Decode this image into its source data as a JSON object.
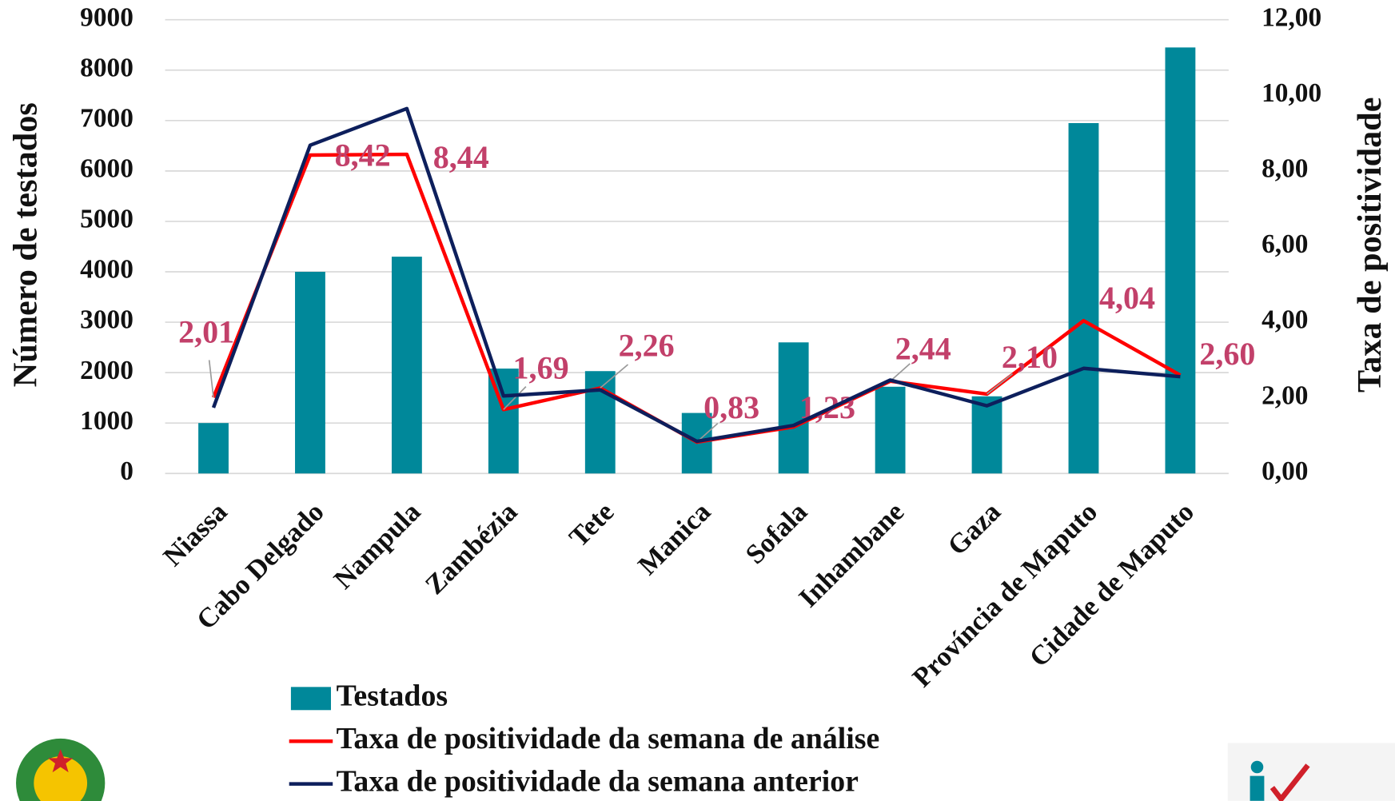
{
  "chart_data": {
    "type": "bar",
    "y_label": "Número de testados",
    "y2_label": "Taxa de positividade",
    "categories": [
      "Niassa",
      "Cabo Delgado",
      "Nampula",
      "Zambézia",
      "Tete",
      "Manica",
      "Sofala",
      "Inhambane",
      "Gaza",
      "Província de Maputo",
      "Cidade de Maputo"
    ],
    "series": [
      {
        "name": "Testados",
        "type": "bar",
        "axis": "y",
        "color": "#00889a",
        "values": [
          1000,
          4000,
          4300,
          2080,
          2030,
          1200,
          2600,
          1720,
          1530,
          6950,
          8450
        ]
      },
      {
        "name": "Taxa de positividade da semana de análise",
        "type": "line",
        "axis": "y2",
        "color": "#ff0000",
        "values": [
          2.01,
          8.42,
          8.44,
          1.69,
          2.26,
          0.83,
          1.23,
          2.44,
          2.1,
          4.04,
          2.6
        ],
        "value_labels": [
          "2,01",
          "8,42",
          "8,44",
          "1,69",
          "2,26",
          "0,83",
          "1,23",
          "2,44",
          "2,10",
          "4,04",
          "2,60"
        ]
      },
      {
        "name": "Taxa de positividade da semana anterior",
        "type": "line",
        "axis": "y2",
        "color": "#0d1f5c",
        "values": [
          1.74,
          8.68,
          9.65,
          2.05,
          2.21,
          0.85,
          1.27,
          2.47,
          1.79,
          2.78,
          2.56
        ]
      }
    ],
    "ylim": [
      0,
      9000
    ],
    "yticks": [
      0,
      1000,
      2000,
      3000,
      4000,
      5000,
      6000,
      7000,
      8000,
      9000
    ],
    "y2lim": [
      0,
      12
    ],
    "y2ticks": [
      {
        "value": 0,
        "label": "0,00"
      },
      {
        "value": 2,
        "label": "2,00"
      },
      {
        "value": 4,
        "label": "4,00"
      },
      {
        "value": 6,
        "label": "6,00"
      },
      {
        "value": 8,
        "label": "8,00"
      },
      {
        "value": 10,
        "label": "10,00"
      },
      {
        "value": 12,
        "label": "12,00"
      }
    ],
    "grid": true
  }
}
